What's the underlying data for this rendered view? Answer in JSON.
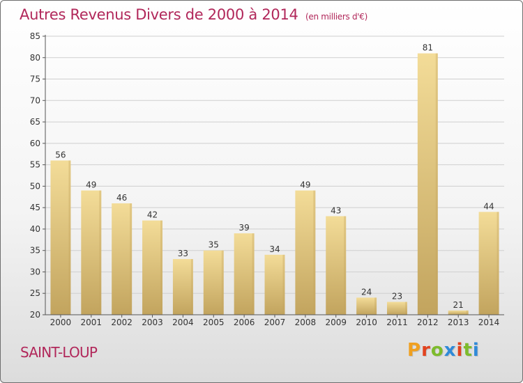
{
  "title": "Autres Revenus Divers de 2000 à 2014",
  "subtitle": "(en milliers d'€)",
  "place": "SAINT-LOUP",
  "brand": "Proxiti",
  "colors": {
    "title": "#b1275a",
    "bar_light": "#f3dc98",
    "bar_dark": "#c2a45e",
    "grid": "#cfcfcf",
    "logo": [
      "#f0a020",
      "#e2431f",
      "#7dbb2c",
      "#2f8ad8",
      "#e2431f",
      "#7dbb2c",
      "#2f8ad8"
    ]
  },
  "chart_data": {
    "type": "bar",
    "categories": [
      "2000",
      "2001",
      "2002",
      "2003",
      "2004",
      "2005",
      "2006",
      "2007",
      "2008",
      "2009",
      "2010",
      "2011",
      "2012",
      "2013",
      "2014"
    ],
    "values": [
      56,
      49,
      46,
      42,
      33,
      35,
      39,
      34,
      49,
      43,
      24,
      23,
      81,
      21,
      44
    ],
    "ylim": [
      20,
      85
    ],
    "yticks": [
      20,
      25,
      30,
      35,
      40,
      45,
      50,
      55,
      60,
      65,
      70,
      75,
      80,
      85
    ],
    "grid": true,
    "xlabel": "",
    "ylabel": ""
  }
}
